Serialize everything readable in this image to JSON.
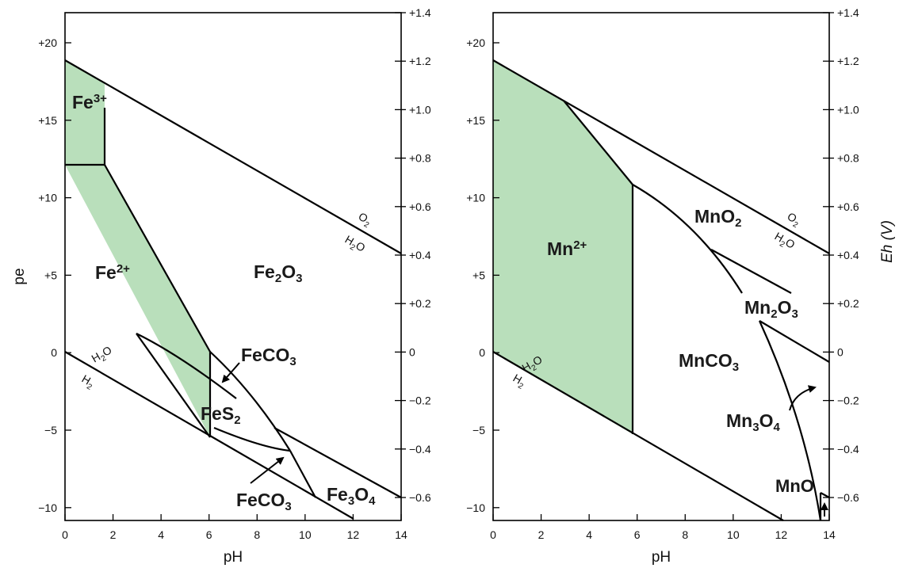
{
  "axes": {
    "x_label": "pH",
    "pe_label": "pe",
    "eh_label": "Eh (V)",
    "x_ticks": [
      "0",
      "2",
      "4",
      "6",
      "8",
      "10",
      "12",
      "14"
    ],
    "pe_ticks": [
      "+20",
      "+15",
      "+10",
      "+5",
      "0",
      "−5",
      "−10"
    ],
    "eh_ticks": [
      "+1.4",
      "+1.2",
      "+1.0",
      "+0.8",
      "+0.6",
      "+0.4",
      "+0.2",
      "0",
      "−0.2",
      "−0.4",
      "−0.6"
    ]
  },
  "colors": {
    "aqueous_field": "#b9dfbb",
    "line": "#000000"
  },
  "iron": {
    "fe3": {
      "base": "Fe",
      "sup": "3+"
    },
    "fe2": {
      "base": "Fe",
      "sup": "2+"
    },
    "fe2o3": {
      "a": "Fe",
      "s1": "2",
      "b": "O",
      "s2": "3"
    },
    "feco3_upper": {
      "a": "FeCO",
      "s1": "3"
    },
    "fes2": {
      "a": "FeS",
      "s1": "2"
    },
    "feco3_lower": {
      "a": "FeCO",
      "s1": "3"
    },
    "fe3o4": {
      "a": "Fe",
      "s1": "3",
      "b": "O",
      "s2": "4"
    },
    "o2_label": {
      "a": "O",
      "s": "2"
    },
    "h2o_upper": {
      "a": "H",
      "s": "2",
      "b": "O"
    },
    "h2o_lower": {
      "a": "H",
      "s": "2",
      "b": "O"
    },
    "h2_label": {
      "a": "H",
      "s": "2"
    }
  },
  "manganese": {
    "mn2": {
      "base": "Mn",
      "sup": "2+"
    },
    "mno2": {
      "a": "MnO",
      "s1": "2"
    },
    "mn2o3": {
      "a": "Mn",
      "s1": "2",
      "b": "O",
      "s2": "3"
    },
    "mnco3": {
      "a": "MnCO",
      "s1": "3"
    },
    "mn3o4": {
      "a": "Mn",
      "s1": "3",
      "b": "O",
      "s2": "4"
    },
    "mno": {
      "a": "MnO"
    },
    "o2_label": {
      "a": "O",
      "s": "2"
    },
    "h2o_upper": {
      "a": "H",
      "s": "2",
      "b": "O"
    },
    "h2o_lower": {
      "a": "H",
      "s": "2",
      "b": "O"
    },
    "h2_label": {
      "a": "H",
      "s": "2"
    }
  }
}
